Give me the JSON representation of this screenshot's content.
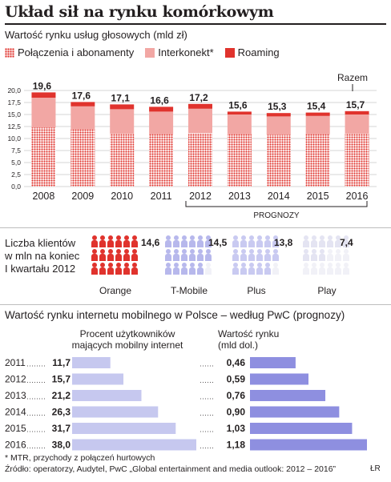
{
  "title": "Układ sił na rynku komórkowym",
  "voice_market": {
    "subtitle": "Wartość rynku usług głosowych (mld zł)",
    "legend": [
      "Połączenia i abonamenty",
      "Interkonekt*",
      "Roaming"
    ],
    "total_label": "Razem",
    "forecast_label": "PROGNOZY"
  },
  "chart_data": [
    {
      "type": "bar",
      "categories": [
        "2008",
        "2009",
        "2010",
        "2011",
        "2012",
        "2013",
        "2014",
        "2015",
        "2016"
      ],
      "series": [
        {
          "name": "Połączenia i abonamenty",
          "values": [
            12.3,
            11.9,
            11.0,
            10.9,
            11.1,
            10.9,
            10.8,
            10.9,
            11.0
          ]
        },
        {
          "name": "Interkonekt*",
          "values": [
            6.2,
            4.8,
            5.1,
            4.7,
            5.1,
            4.1,
            3.8,
            3.8,
            4.0
          ]
        },
        {
          "name": "Roaming",
          "values": [
            1.1,
            0.9,
            1.0,
            1.0,
            1.0,
            0.6,
            0.7,
            0.7,
            0.7
          ]
        }
      ],
      "totals": [
        "19,6",
        "17,6",
        "17,1",
        "16,6",
        "17,2",
        "15,6",
        "15,3",
        "15,4",
        "15,7"
      ],
      "yticks": [
        "0,0",
        "2,5",
        "5,0",
        "7,5",
        "10,0",
        "12,5",
        "15,0",
        "17,5",
        "20,0"
      ],
      "ylim": [
        0,
        20
      ],
      "colors": {
        "calls": "#e0332d",
        "interconnect": "#f2a7a4",
        "roaming": "#e0332d"
      }
    },
    {
      "type": "bar",
      "title": "Wartość rynku internetu mobilnego w Polsce – według PwC (prognozy)",
      "categories": [
        "2011",
        "2012",
        "2013",
        "2014",
        "2015",
        "2016"
      ],
      "series": [
        {
          "name": "Procent użytkowników mających mobilny internet",
          "values": [
            11.7,
            15.7,
            21.2,
            26.3,
            31.7,
            38.0
          ],
          "labels": [
            "11,7",
            "15,7",
            "21,2",
            "26,3",
            "31,7",
            "38,0"
          ]
        },
        {
          "name": "Wartość rynku (mld dol.)",
          "values": [
            0.46,
            0.59,
            0.76,
            0.9,
            1.03,
            1.18
          ],
          "labels": [
            "0,46",
            "0,59",
            "0,76",
            "0,90",
            "1,03",
            "1,18"
          ]
        }
      ],
      "colors": {
        "share": "#c6c8ef",
        "value": "#8e8fe0"
      }
    }
  ],
  "clients": {
    "heading_lines": [
      "Liczba klientów",
      "w mln na koniec",
      "I kwartału 2012"
    ],
    "operators": [
      {
        "name": "Orange",
        "value": "14,6",
        "color": "#e0332d"
      },
      {
        "name": "T-Mobile",
        "value": "14,5",
        "color": "#b7b8ec"
      },
      {
        "name": "Plus",
        "value": "13,8",
        "color": "#c9caf1"
      },
      {
        "name": "Play",
        "value": "7,4",
        "color": "#e4e4f2"
      }
    ]
  },
  "mobile_internet": {
    "col1_header_lines": [
      "Procent użytkowników",
      "mających mobilny internet"
    ],
    "col2_header_lines": [
      "Wartość rynku",
      "(mld dol.)"
    ]
  },
  "footer": {
    "note": "* MTR, przychody z połączeń hurtowych",
    "source": "Źródło: operatorzy, Audytel, PwC „Global entertainment and media outlook: 2012 – 2016”",
    "credit": "ŁR"
  }
}
